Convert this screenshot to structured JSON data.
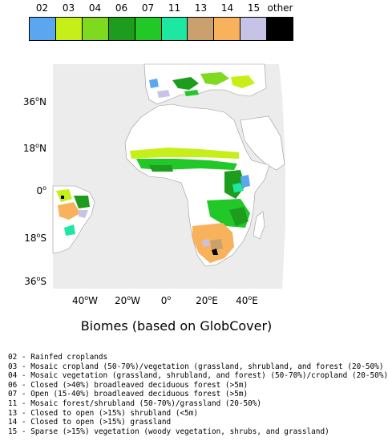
{
  "legend": {
    "items": [
      {
        "code": "02",
        "color": "#5aa7f0"
      },
      {
        "code": "03",
        "color": "#c6ee18"
      },
      {
        "code": "04",
        "color": "#7fd91f"
      },
      {
        "code": "06",
        "color": "#1e9c1e"
      },
      {
        "code": "07",
        "color": "#22c728"
      },
      {
        "code": "11",
        "color": "#1ee7a2"
      },
      {
        "code": "13",
        "color": "#caa06f"
      },
      {
        "code": "14",
        "color": "#f8b25c"
      },
      {
        "code": "15",
        "color": "#c7c3e6"
      },
      {
        "code": "other",
        "color": "#000000"
      }
    ]
  },
  "map": {
    "lat_labels": [
      {
        "deg": "36",
        "hemi": "N"
      },
      {
        "deg": "18",
        "hemi": "N"
      },
      {
        "deg": "0",
        "hemi": ""
      },
      {
        "deg": "18",
        "hemi": "S"
      },
      {
        "deg": "36",
        "hemi": "S"
      }
    ],
    "lon_labels": [
      {
        "deg": "40",
        "hemi": "W"
      },
      {
        "deg": "20",
        "hemi": "W"
      },
      {
        "deg": "0",
        "hemi": ""
      },
      {
        "deg": "20",
        "hemi": "E"
      },
      {
        "deg": "40",
        "hemi": "E"
      }
    ],
    "ocean_color": "#ececec",
    "land_color": "#ffffff"
  },
  "title": "Biomes (based on GlobCover)",
  "definitions": [
    "02 - Rainfed croplands",
    "03 - Mosaic cropland (50-70%)/vegetation (grassland, shrubland, and forest (20-50%)",
    "04 - Mosaic vegetation (grassland, shrubland, and forest) (50-70%)/cropland (20-50%)",
    "06 - Closed (>40%) broadleaved deciduous forest (>5m)",
    "07 - Open (15-40%) broadleaved deciduous forest (>5m)",
    "11 - Mosaic forest/shrubland (50-70%)/grassland (20-50%)",
    "13 - Closed to open (>15%) shrubland (<5m)",
    "14 - Closed to open (>15%) grassland",
    "15 - Sparse (>15%) vegetation (woody vegetation, shrubs, and grassland)"
  ]
}
